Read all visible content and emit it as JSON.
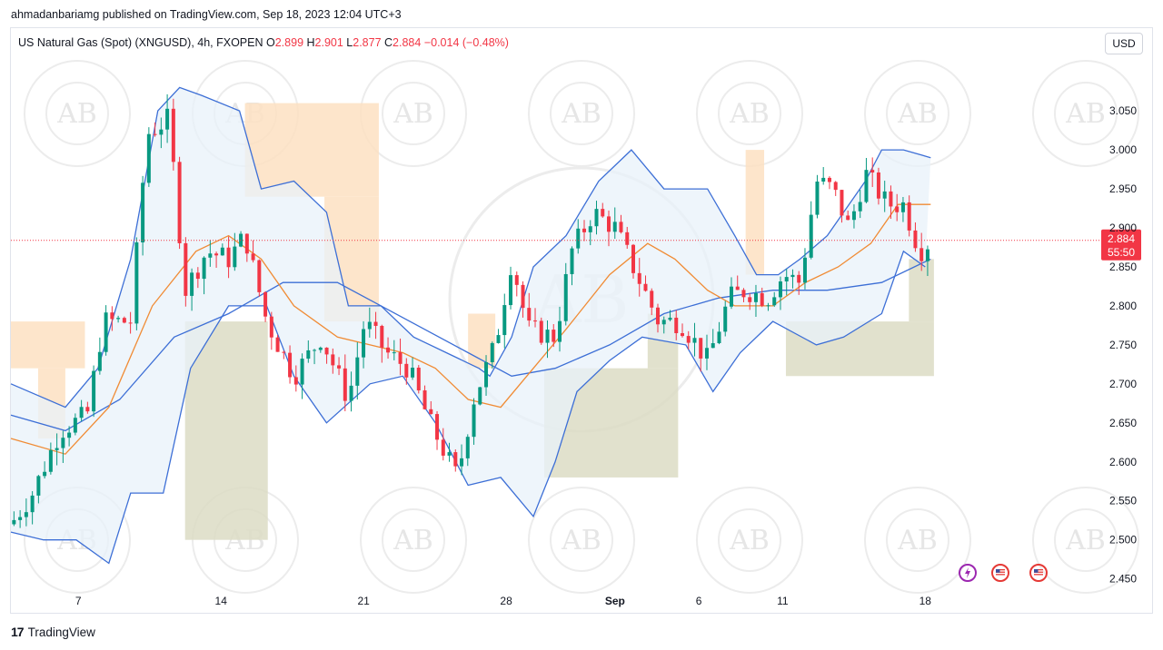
{
  "header": {
    "publisher_line": "ahmadanbariamg published on TradingView.com, Sep 18, 2023 12:04 UTC+3"
  },
  "legend": {
    "symbol": "US Natural Gas (Spot) (XNGUSD), 4h, FXOPEN",
    "open_label": "O",
    "open": "2.899",
    "high_label": "H",
    "high": "2.901",
    "low_label": "L",
    "low": "2.877",
    "close_label": "C",
    "close": "2.884",
    "change": "−0.014 (−0.48%)"
  },
  "currency_button": "USD",
  "price_tag": {
    "price": "2.884",
    "countdown": "55:50"
  },
  "footer": {
    "brand": "TradingView",
    "brand_mark": "17"
  },
  "watermark": {
    "text": "AB"
  },
  "colors": {
    "up": "#089981",
    "down": "#f23645",
    "bb": "#3d6fd6",
    "ma": "#f08b34",
    "bb_fill": "#e8f1fa",
    "supply_zone": "#fde0c2",
    "demand_zone": "#dcdcc4"
  },
  "events": [
    {
      "name": "lightning-event-icon",
      "color": "#9c27b0"
    },
    {
      "name": "us-flag-event-icon",
      "color": "#e53935"
    },
    {
      "name": "us-flag-event-icon-2",
      "color": "#e53935"
    }
  ],
  "chart_data": {
    "type": "candlestick",
    "title": "US Natural Gas (Spot) (XNGUSD), 4h, FXOPEN",
    "ylim": [
      2.41,
      3.12
    ],
    "y_ticks": [
      "3.050",
      "3.000",
      "2.950",
      "2.900",
      "2.850",
      "2.800",
      "2.750",
      "2.700",
      "2.650",
      "2.600",
      "2.550",
      "2.500",
      "2.450"
    ],
    "x_ticks": [
      {
        "label": "7",
        "pos": 0.062
      },
      {
        "label": "14",
        "pos": 0.193
      },
      {
        "label": "21",
        "pos": 0.324
      },
      {
        "label": "28",
        "pos": 0.455
      },
      {
        "label": "Sep",
        "pos": 0.555
      },
      {
        "label": "6",
        "pos": 0.632
      },
      {
        "label": "11",
        "pos": 0.709
      },
      {
        "label": "18",
        "pos": 0.84
      }
    ],
    "last_price": 2.884,
    "close_path": [
      [
        0,
        2.52
      ],
      [
        0.02,
        2.56
      ],
      [
        0.045,
        2.64
      ],
      [
        0.07,
        2.66
      ],
      [
        0.085,
        2.78
      ],
      [
        0.11,
        2.78
      ],
      [
        0.125,
        3.02
      ],
      [
        0.145,
        3.04
      ],
      [
        0.16,
        2.82
      ],
      [
        0.18,
        2.87
      ],
      [
        0.2,
        2.86
      ],
      [
        0.215,
        2.89
      ],
      [
        0.235,
        2.78
      ],
      [
        0.26,
        2.71
      ],
      [
        0.285,
        2.76
      ],
      [
        0.31,
        2.68
      ],
      [
        0.325,
        2.78
      ],
      [
        0.345,
        2.74
      ],
      [
        0.365,
        2.72
      ],
      [
        0.385,
        2.65
      ],
      [
        0.41,
        2.58
      ],
      [
        0.425,
        2.68
      ],
      [
        0.445,
        2.75
      ],
      [
        0.46,
        2.86
      ],
      [
        0.475,
        2.77
      ],
      [
        0.5,
        2.76
      ],
      [
        0.515,
        2.87
      ],
      [
        0.535,
        2.92
      ],
      [
        0.555,
        2.9
      ],
      [
        0.575,
        2.84
      ],
      [
        0.595,
        2.78
      ],
      [
        0.615,
        2.78
      ],
      [
        0.64,
        2.73
      ],
      [
        0.66,
        2.81
      ],
      [
        0.675,
        2.82
      ],
      [
        0.695,
        2.81
      ],
      [
        0.71,
        2.84
      ],
      [
        0.725,
        2.83
      ],
      [
        0.74,
        2.96
      ],
      [
        0.755,
        2.95
      ],
      [
        0.77,
        2.9
      ],
      [
        0.785,
        2.97
      ],
      [
        0.805,
        2.93
      ],
      [
        0.82,
        2.93
      ],
      [
        0.835,
        2.87
      ],
      [
        0.845,
        2.884
      ]
    ],
    "bollinger": {
      "upper": [
        [
          0,
          2.7
        ],
        [
          0.05,
          2.67
        ],
        [
          0.08,
          2.72
        ],
        [
          0.11,
          2.86
        ],
        [
          0.135,
          3.05
        ],
        [
          0.155,
          3.08
        ],
        [
          0.175,
          3.07
        ],
        [
          0.21,
          3.05
        ],
        [
          0.23,
          2.95
        ],
        [
          0.26,
          2.96
        ],
        [
          0.29,
          2.92
        ],
        [
          0.31,
          2.8
        ],
        [
          0.34,
          2.8
        ],
        [
          0.37,
          2.76
        ],
        [
          0.4,
          2.74
        ],
        [
          0.43,
          2.72
        ],
        [
          0.44,
          2.71
        ],
        [
          0.46,
          2.76
        ],
        [
          0.48,
          2.85
        ],
        [
          0.51,
          2.89
        ],
        [
          0.54,
          2.96
        ],
        [
          0.57,
          3.0
        ],
        [
          0.6,
          2.95
        ],
        [
          0.64,
          2.95
        ],
        [
          0.665,
          2.89
        ],
        [
          0.685,
          2.84
        ],
        [
          0.705,
          2.84
        ],
        [
          0.725,
          2.86
        ],
        [
          0.75,
          2.89
        ],
        [
          0.785,
          2.96
        ],
        [
          0.8,
          3.0
        ],
        [
          0.82,
          3.0
        ],
        [
          0.845,
          2.99
        ]
      ],
      "basis": [
        [
          0,
          2.66
        ],
        [
          0.05,
          2.64
        ],
        [
          0.1,
          2.68
        ],
        [
          0.15,
          2.76
        ],
        [
          0.2,
          2.79
        ],
        [
          0.25,
          2.83
        ],
        [
          0.3,
          2.83
        ],
        [
          0.34,
          2.8
        ],
        [
          0.38,
          2.77
        ],
        [
          0.42,
          2.74
        ],
        [
          0.46,
          2.71
        ],
        [
          0.5,
          2.72
        ],
        [
          0.55,
          2.75
        ],
        [
          0.6,
          2.79
        ],
        [
          0.65,
          2.81
        ],
        [
          0.7,
          2.82
        ],
        [
          0.75,
          2.82
        ],
        [
          0.8,
          2.83
        ],
        [
          0.845,
          2.86
        ]
      ],
      "lower": [
        [
          0,
          2.51
        ],
        [
          0.03,
          2.5
        ],
        [
          0.06,
          2.5
        ],
        [
          0.09,
          2.47
        ],
        [
          0.11,
          2.56
        ],
        [
          0.14,
          2.56
        ],
        [
          0.165,
          2.72
        ],
        [
          0.2,
          2.8
        ],
        [
          0.235,
          2.8
        ],
        [
          0.26,
          2.71
        ],
        [
          0.29,
          2.65
        ],
        [
          0.33,
          2.7
        ],
        [
          0.36,
          2.71
        ],
        [
          0.39,
          2.65
        ],
        [
          0.42,
          2.57
        ],
        [
          0.45,
          2.58
        ],
        [
          0.48,
          2.53
        ],
        [
          0.5,
          2.6
        ],
        [
          0.52,
          2.69
        ],
        [
          0.55,
          2.73
        ],
        [
          0.58,
          2.76
        ],
        [
          0.62,
          2.75
        ],
        [
          0.645,
          2.69
        ],
        [
          0.67,
          2.74
        ],
        [
          0.7,
          2.78
        ],
        [
          0.74,
          2.75
        ],
        [
          0.765,
          2.76
        ],
        [
          0.8,
          2.79
        ],
        [
          0.82,
          2.87
        ],
        [
          0.84,
          2.85
        ]
      ]
    },
    "moving_average": [
      [
        0,
        2.63
      ],
      [
        0.05,
        2.61
      ],
      [
        0.09,
        2.67
      ],
      [
        0.13,
        2.8
      ],
      [
        0.17,
        2.87
      ],
      [
        0.2,
        2.89
      ],
      [
        0.23,
        2.86
      ],
      [
        0.26,
        2.8
      ],
      [
        0.3,
        2.76
      ],
      [
        0.33,
        2.75
      ],
      [
        0.36,
        2.74
      ],
      [
        0.39,
        2.72
      ],
      [
        0.42,
        2.68
      ],
      [
        0.45,
        2.67
      ],
      [
        0.48,
        2.72
      ],
      [
        0.51,
        2.77
      ],
      [
        0.55,
        2.84
      ],
      [
        0.585,
        2.88
      ],
      [
        0.61,
        2.86
      ],
      [
        0.64,
        2.82
      ],
      [
        0.665,
        2.8
      ],
      [
        0.7,
        2.8
      ],
      [
        0.73,
        2.83
      ],
      [
        0.76,
        2.85
      ],
      [
        0.79,
        2.88
      ],
      [
        0.815,
        2.93
      ],
      [
        0.845,
        2.93
      ]
    ],
    "zones": [
      {
        "kind": "supply",
        "x0": 0.0,
        "x1": 0.068,
        "y0": 2.72,
        "y1": 2.78
      },
      {
        "kind": "supply",
        "x0": 0.025,
        "x1": 0.05,
        "y0": 2.63,
        "y1": 2.72
      },
      {
        "kind": "supply",
        "x0": 0.215,
        "x1": 0.338,
        "y0": 2.94,
        "y1": 3.06
      },
      {
        "kind": "supply",
        "x0": 0.288,
        "x1": 0.338,
        "y0": 2.78,
        "y1": 2.94
      },
      {
        "kind": "supply",
        "x0": 0.42,
        "x1": 0.445,
        "y0": 2.72,
        "y1": 2.79
      },
      {
        "kind": "supply",
        "x0": 0.675,
        "x1": 0.692,
        "y0": 2.84,
        "y1": 3.0
      },
      {
        "kind": "demand",
        "x0": 0.16,
        "x1": 0.236,
        "y0": 2.5,
        "y1": 2.78
      },
      {
        "kind": "demand",
        "x0": 0.49,
        "x1": 0.613,
        "y0": 2.58,
        "y1": 2.72
      },
      {
        "kind": "demand",
        "x0": 0.585,
        "x1": 0.613,
        "y0": 2.72,
        "y1": 2.79
      },
      {
        "kind": "demand",
        "x0": 0.712,
        "x1": 0.848,
        "y0": 2.71,
        "y1": 2.78
      },
      {
        "kind": "demand",
        "x0": 0.825,
        "x1": 0.848,
        "y0": 2.78,
        "y1": 2.86
      }
    ]
  }
}
